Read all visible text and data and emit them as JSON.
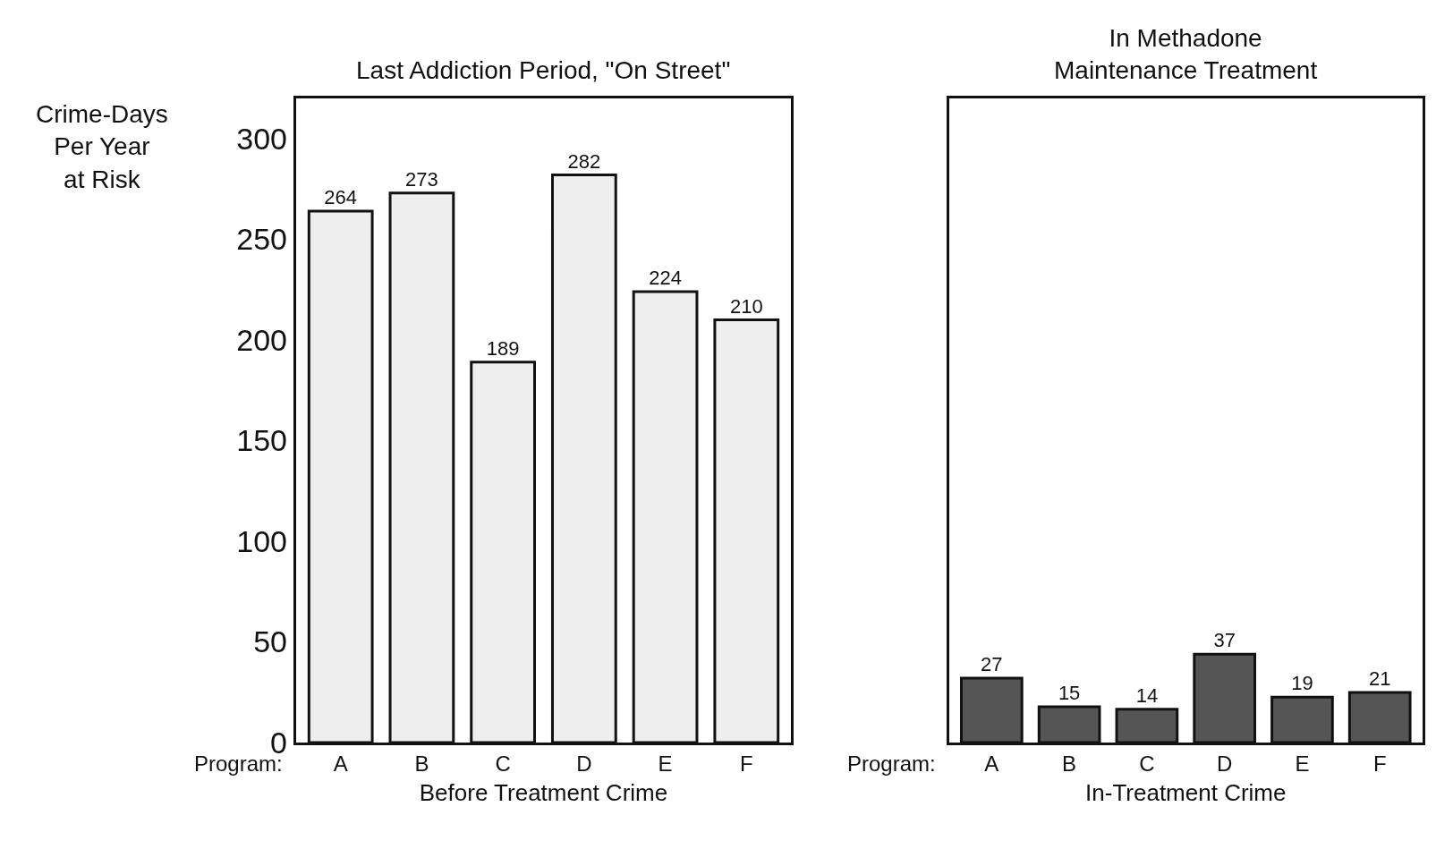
{
  "chart_data": [
    {
      "type": "bar",
      "title": "Last Addiction Period, \"On Street\"",
      "xlabel": "Before Treatment Crime",
      "ylabel": "Crime-Days\nPer Year\nat Risk",
      "categories": [
        "A",
        "B",
        "C",
        "D",
        "E",
        "F"
      ],
      "values": [
        264,
        273,
        189,
        282,
        224,
        210
      ],
      "color": "#eeeeee",
      "ylim": [
        0,
        320
      ],
      "yticks": [
        0,
        50,
        100,
        150,
        200,
        250,
        300
      ],
      "data_labels": true,
      "annotations": [
        "Program:"
      ]
    },
    {
      "type": "bar",
      "title": "In Methadone\nMaintenance Treatment",
      "xlabel": "In-Treatment Crime",
      "categories": [
        "A",
        "B",
        "C",
        "D",
        "E",
        "F"
      ],
      "values": [
        27,
        15,
        14,
        37,
        19,
        21
      ],
      "color": "#555555",
      "ylim": [
        0,
        270
      ],
      "tick_labels": "x",
      "data_labels": true,
      "annotations": [
        "Program:"
      ]
    }
  ]
}
